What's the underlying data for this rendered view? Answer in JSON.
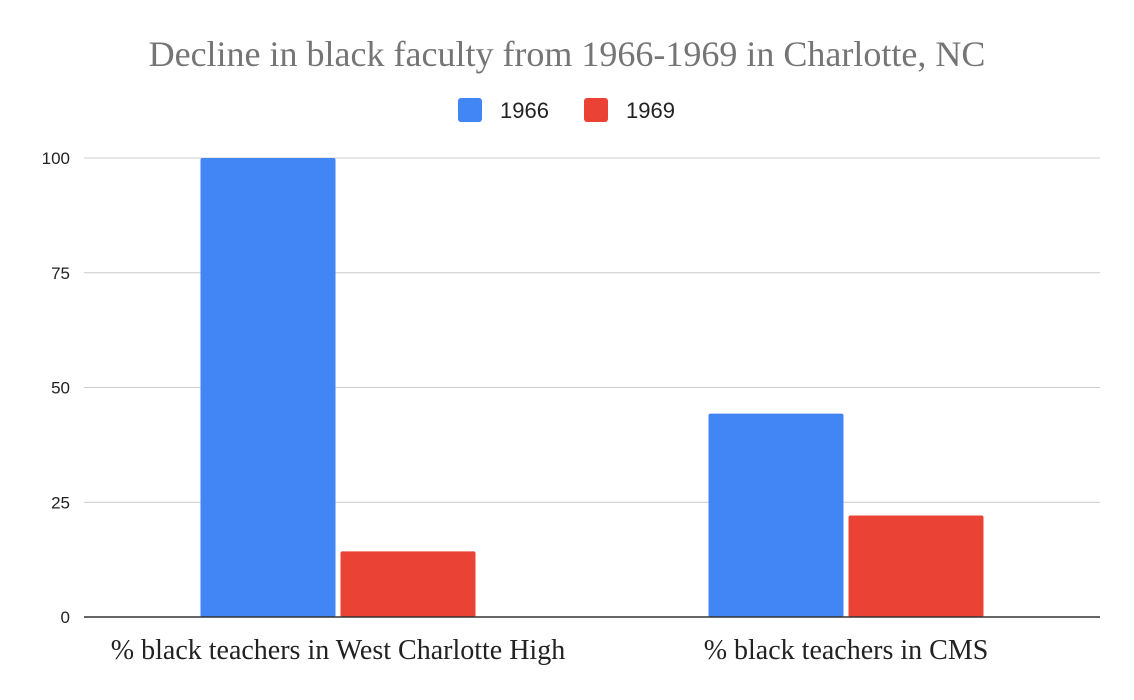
{
  "chart_data": {
    "type": "bar",
    "title": "Decline in black faculty from 1966-1969 in Charlotte, NC",
    "xlabel": "",
    "ylabel": "",
    "categories": [
      "% black teachers in West Charlotte High",
      "% black teachers in CMS"
    ],
    "series": [
      {
        "name": "1966",
        "color": "#4285f4",
        "values": [
          100,
          44.3
        ]
      },
      {
        "name": "1969",
        "color": "#ea4335",
        "values": [
          14.3,
          22.1
        ]
      }
    ],
    "ylim": [
      0,
      100
    ],
    "yticks": [
      0,
      25,
      50,
      75,
      100
    ],
    "grid": true,
    "legend_position": "top-center"
  }
}
